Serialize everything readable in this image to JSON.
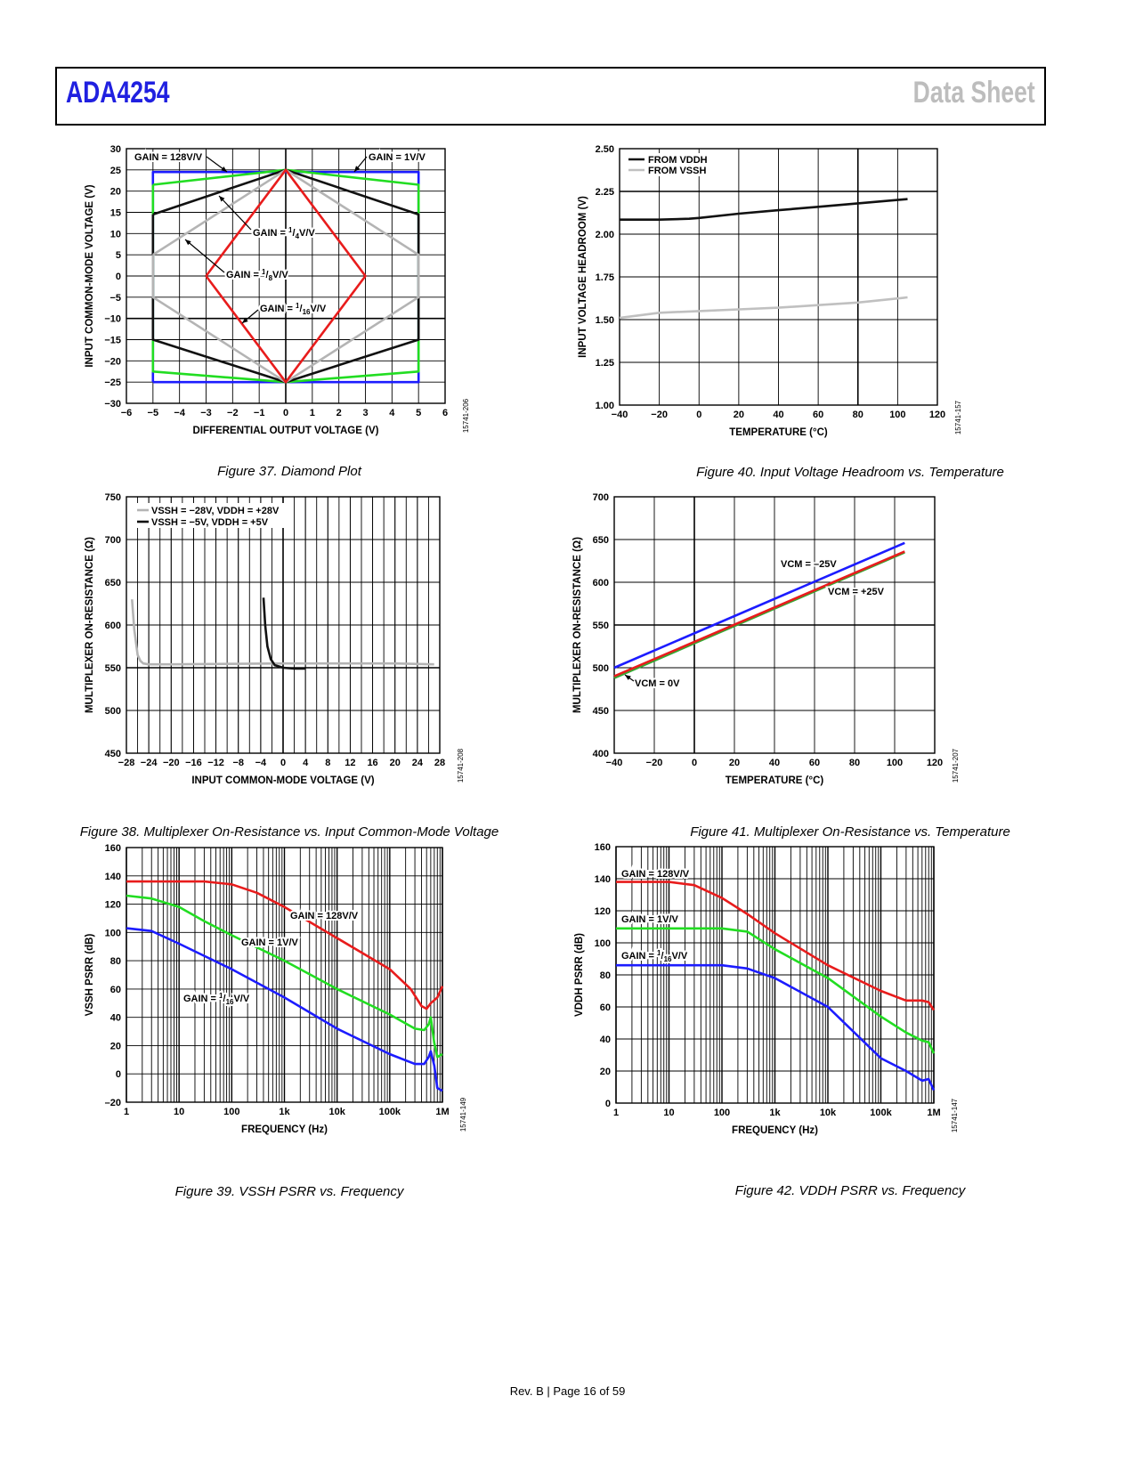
{
  "header": {
    "product": "ADA4254",
    "doc_type": "Data Sheet"
  },
  "footer": {
    "text": "Rev. B | Page 16 of 59"
  },
  "figures": [
    {
      "id": "fig37",
      "caption": "Figure 37. Diamond Plot",
      "code": "15741-206",
      "chart_data": {
        "type": "line",
        "xlabel": "DIFFERENTIAL OUTPUT VOLTAGE (V)",
        "ylabel": "INPUT COMMON-MODE VOLTAGE (V)",
        "xlim": [
          -6,
          6
        ],
        "ylim": [
          -30,
          30
        ],
        "xticks": [
          -6,
          -5,
          -4,
          -3,
          -2,
          -1,
          0,
          1,
          2,
          3,
          4,
          5,
          6
        ],
        "xtick_labels": [
          "−6",
          "−5",
          "−4",
          "−3",
          "−2",
          "−1",
          "0",
          "1",
          "2",
          "3",
          "4",
          "5",
          "6"
        ],
        "yticks": [
          30,
          25,
          20,
          15,
          10,
          5,
          0,
          -5,
          -10,
          -15,
          -20,
          -25,
          -30
        ],
        "ytick_labels": [
          "30",
          "25",
          "20",
          "15",
          "10",
          "5",
          "0",
          "−5",
          "−10",
          "−15",
          "−20",
          "−25",
          "−30"
        ],
        "series": [
          {
            "name": "GAIN = 1V/V",
            "color": "#1c1cff",
            "x": [
              -5,
              -5,
              5,
              5,
              -5
            ],
            "y": [
              -25,
              24.5,
              24.5,
              -25,
              -25
            ]
          },
          {
            "name": "GAIN = 128V/V",
            "color": "#22dd22",
            "x": [
              -5,
              0,
              5,
              5,
              0,
              -5,
              -5
            ],
            "y": [
              21.5,
              25,
              21.5,
              -22.5,
              -25,
              -22.5,
              21.5
            ]
          },
          {
            "name": "GAIN = 1/4V/V",
            "color": "#111111",
            "x": [
              -5,
              0,
              5,
              5,
              0,
              -5,
              -5
            ],
            "y": [
              14.5,
              25,
              14.5,
              -15,
              -25,
              -15,
              14.5
            ]
          },
          {
            "name": "GAIN = 1/8V/V",
            "color": "#b4b4b4",
            "x": [
              -5,
              0,
              5,
              5,
              0,
              -5,
              -5
            ],
            "y": [
              5,
              25,
              5,
              -5,
              -25,
              -5,
              5
            ]
          },
          {
            "name": "GAIN = 1/16V/V",
            "color": "#e81c1c",
            "x": [
              -3,
              0,
              3,
              0,
              -3
            ],
            "y": [
              0,
              25,
              0,
              -25,
              0
            ]
          }
        ],
        "annotations": [
          {
            "text": "GAIN = 128V/V",
            "main": "GAIN = 128V/V",
            "sub": ""
          },
          {
            "text": "GAIN = 1V/V",
            "main": "GAIN = 1V/V",
            "sub": ""
          },
          {
            "text": "GAIN = 1/4V/V",
            "pre": "GAIN = ",
            "num": "1",
            "den": "4",
            "post": "V/V"
          },
          {
            "text": "GAIN = 1/8V/V",
            "pre": "GAIN = ",
            "num": "1",
            "den": "8",
            "post": "V/V"
          },
          {
            "text": "GAIN = 1/16V/V",
            "pre": "GAIN = ",
            "num": "1",
            "den": "16",
            "post": "V/V"
          }
        ]
      }
    },
    {
      "id": "fig40",
      "caption": "Figure 40. Input Voltage Headroom vs. Temperature",
      "code": "15741-157",
      "chart_data": {
        "type": "line",
        "xlabel": "TEMPERATURE (°C)",
        "ylabel": "INPUT VOLTAGE HEADROOM (V)",
        "xlim": [
          -40,
          120
        ],
        "ylim": [
          1.0,
          2.5
        ],
        "xticks": [
          -40,
          -20,
          0,
          20,
          40,
          60,
          80,
          100,
          120
        ],
        "xtick_labels": [
          "−40",
          "−20",
          "0",
          "20",
          "40",
          "60",
          "80",
          "100",
          "120"
        ],
        "yticks": [
          1.0,
          1.25,
          1.5,
          1.75,
          2.0,
          2.25,
          2.5
        ],
        "ytick_labels": [
          "1.00",
          "1.25",
          "1.50",
          "1.75",
          "2.00",
          "2.25",
          "2.50"
        ],
        "legend": [
          "FROM VDDH",
          "FROM VSSH"
        ],
        "series": [
          {
            "name": "FROM VDDH",
            "color": "#111111",
            "x": [
              -40,
              -20,
              -5,
              0,
              20,
              40,
              60,
              80,
              105
            ],
            "y": [
              2.085,
              2.085,
              2.09,
              2.095,
              2.12,
              2.14,
              2.16,
              2.18,
              2.205
            ]
          },
          {
            "name": "FROM VSSH",
            "color": "#c0c0c0",
            "x": [
              -40,
              -20,
              0,
              20,
              40,
              60,
              80,
              105
            ],
            "y": [
              1.51,
              1.54,
              1.55,
              1.56,
              1.57,
              1.585,
              1.6,
              1.63
            ]
          }
        ]
      }
    },
    {
      "id": "fig38",
      "caption": "Figure 38. Multiplexer On-Resistance vs. Input Common-Mode Voltage",
      "code": "15741-208",
      "chart_data": {
        "type": "line",
        "xlabel": "INPUT COMMON-MODE VOLTAGE (V)",
        "ylabel": "MULTIPLEXER ON-RESISTANCE (Ω)",
        "xlim": [
          -28,
          28
        ],
        "ylim": [
          450,
          750
        ],
        "xticks": [
          -28,
          -24,
          -20,
          -16,
          -12,
          -8,
          -4,
          0,
          4,
          8,
          12,
          16,
          20,
          24,
          28
        ],
        "xtick_labels": [
          "−28",
          "−24",
          "−20",
          "−16",
          "−12",
          "−8",
          "−4",
          "0",
          "4",
          "8",
          "12",
          "16",
          "20",
          "24",
          "28"
        ],
        "yticks": [
          450,
          500,
          550,
          600,
          650,
          700,
          750
        ],
        "ytick_labels": [
          "450",
          "500",
          "550",
          "600",
          "650",
          "700",
          "750"
        ],
        "legend": [
          "VSSH = −28V, VDDH = +28V",
          "VSSH = −5V, VDDH = +5V"
        ],
        "series": [
          {
            "name": "VSSH = −28V, VDDH = +28V",
            "color": "#b4b4b4",
            "x": [
              -27,
              -26.6,
              -26,
              -25.5,
              -25,
              -24,
              -20,
              0,
              20,
              27
            ],
            "y": [
              630,
              595,
              565,
              558,
              555,
              554,
              554,
              555,
              555,
              554
            ]
          },
          {
            "name": "VSSH = −5V, VDDH = +5V",
            "color": "#111111",
            "x": [
              -3.5,
              -3.2,
              -2.8,
              -2.2,
              -1.5,
              -0.5,
              0,
              2,
              4
            ],
            "y": [
              632,
              600,
              575,
              560,
              553,
              551,
              550,
              549,
              549
            ]
          }
        ]
      }
    },
    {
      "id": "fig41",
      "caption": "Figure 41. Multiplexer On-Resistance vs. Temperature",
      "code": "15741-207",
      "chart_data": {
        "type": "line",
        "xlabel": "TEMPERATURE (°C)",
        "ylabel": "MULTIPLEXER ON-RESISTANCE (Ω)",
        "xlim": [
          -40,
          120
        ],
        "ylim": [
          400,
          700
        ],
        "xticks": [
          -40,
          -20,
          0,
          20,
          40,
          60,
          80,
          100,
          120
        ],
        "xtick_labels": [
          "−40",
          "−20",
          "0",
          "20",
          "40",
          "60",
          "80",
          "100",
          "120"
        ],
        "yticks": [
          400,
          450,
          500,
          550,
          600,
          650,
          700
        ],
        "ytick_labels": [
          "400",
          "450",
          "500",
          "550",
          "600",
          "650",
          "700"
        ],
        "series": [
          {
            "name": "VCM = −25V",
            "color": "#1c1cff",
            "x": [
              -40,
              105
            ],
            "y": [
              500,
              646
            ]
          },
          {
            "name": "VCM = 0V",
            "color": "#33aa33",
            "x": [
              -40,
              105
            ],
            "y": [
              488,
              635
            ]
          },
          {
            "name": "VCM = +25V",
            "color": "#e81c1c",
            "x": [
              -40,
              105
            ],
            "y": [
              490,
              636
            ]
          }
        ],
        "annotations": [
          "VCM = –25V",
          "VCM = +25V",
          "VCM = 0V"
        ]
      }
    },
    {
      "id": "fig39",
      "caption": "Figure 39. VSSH PSRR vs. Frequency",
      "code": "15741-149",
      "chart_data": {
        "type": "line",
        "xscale": "log",
        "xlabel": "FREQUENCY (Hz)",
        "ylabel": "VSSH PSRR (dB)",
        "xlim": [
          1,
          1000000
        ],
        "ylim": [
          -20,
          160
        ],
        "xticks": [
          1,
          10,
          100,
          1000,
          10000,
          100000,
          1000000
        ],
        "xtick_labels": [
          "1",
          "10",
          "100",
          "1k",
          "10k",
          "100k",
          "1M"
        ],
        "yticks": [
          -20,
          0,
          20,
          40,
          60,
          80,
          100,
          120,
          140,
          160
        ],
        "ytick_labels": [
          "–20",
          "0",
          "20",
          "40",
          "60",
          "80",
          "100",
          "120",
          "140",
          "160"
        ],
        "series": [
          {
            "name": "GAIN = 128V/V",
            "color": "#e81c1c",
            "x": [
              1,
              10,
              30,
              100,
              300,
              1000,
              10000,
              100000,
              250000,
              400000,
              500000,
              600000,
              800000,
              1000000
            ],
            "y": [
              136,
              136,
              136,
              134,
              128,
              118,
              96,
              74,
              60,
              48,
              46,
              50,
              54,
              62
            ]
          },
          {
            "name": "GAIN = 1V/V",
            "color": "#22dd22",
            "x": [
              1,
              3,
              10,
              30,
              100,
              1000,
              10000,
              100000,
              300000,
              450000,
              550000,
              600000,
              700000,
              800000,
              1000000
            ],
            "y": [
              126,
              124,
              118,
              108,
              98,
              80,
              60,
              42,
              32,
              31,
              35,
              40,
              22,
              12,
              14
            ]
          },
          {
            "name": "GAIN = 1/16V/V",
            "color": "#1c1cff",
            "x": [
              1,
              3,
              10,
              100,
              1000,
              10000,
              100000,
              300000,
              450000,
              550000,
              600000,
              700000,
              800000,
              1000000
            ],
            "y": [
              103,
              101,
              92,
              74,
              54,
              32,
              14,
              7,
              7,
              12,
              16,
              6,
              -10,
              -12
            ]
          }
        ],
        "annotations": [
          {
            "text": "GAIN = 128V/V",
            "main": "GAIN = 128V/V"
          },
          {
            "text": "GAIN = 1V/V",
            "main": "GAIN = 1V/V"
          },
          {
            "text": "GAIN = 1/16V/V",
            "pre": "GAIN = ",
            "num": "1",
            "den": "16",
            "post": "V/V"
          }
        ]
      }
    },
    {
      "id": "fig42",
      "caption": "Figure 42. VDDH PSRR vs. Frequency",
      "code": "15741-147",
      "chart_data": {
        "type": "line",
        "xscale": "log",
        "xlabel": "FREQUENCY (Hz)",
        "ylabel": "VDDH PSRR (dB)",
        "xlim": [
          1,
          1000000
        ],
        "ylim": [
          0,
          160
        ],
        "xticks": [
          1,
          10,
          100,
          1000,
          10000,
          100000,
          1000000
        ],
        "xtick_labels": [
          "1",
          "10",
          "100",
          "1k",
          "10k",
          "100k",
          "1M"
        ],
        "yticks": [
          0,
          20,
          40,
          60,
          80,
          100,
          120,
          140,
          160
        ],
        "ytick_labels": [
          "0",
          "20",
          "40",
          "60",
          "80",
          "100",
          "120",
          "140",
          "160"
        ],
        "series": [
          {
            "name": "GAIN = 128V/V",
            "color": "#e81c1c",
            "x": [
              1,
              10,
              30,
              100,
              300,
              1000,
              10000,
              100000,
              300000,
              600000,
              800000,
              1000000
            ],
            "y": [
              138,
              138,
              136,
              128,
              118,
              106,
              86,
              70,
              64,
              64,
              63,
              58
            ]
          },
          {
            "name": "GAIN = 1V/V",
            "color": "#22dd22",
            "x": [
              1,
              10,
              100,
              300,
              1000,
              10000,
              100000,
              300000,
              600000,
              800000,
              1000000
            ],
            "y": [
              109,
              109,
              109,
              107,
              96,
              78,
              54,
              44,
              39,
              38,
              31
            ]
          },
          {
            "name": "GAIN = 1/16V/V",
            "color": "#1c1cff",
            "x": [
              1,
              10,
              100,
              300,
              1000,
              10000,
              100000,
              300000,
              600000,
              800000,
              1000000
            ],
            "y": [
              86,
              86,
              86,
              84,
              78,
              60,
              28,
              20,
              14,
              15,
              8
            ]
          }
        ],
        "annotations": [
          {
            "text": "GAIN = 128V/V",
            "main": "GAIN = 128V/V"
          },
          {
            "text": "GAIN = 1V/V",
            "main": "GAIN = 1V/V"
          },
          {
            "text": "GAIN = 1/16V/V",
            "pre": "GAIN = ",
            "num": "1",
            "den": "16",
            "post": "V/V"
          }
        ]
      }
    }
  ]
}
